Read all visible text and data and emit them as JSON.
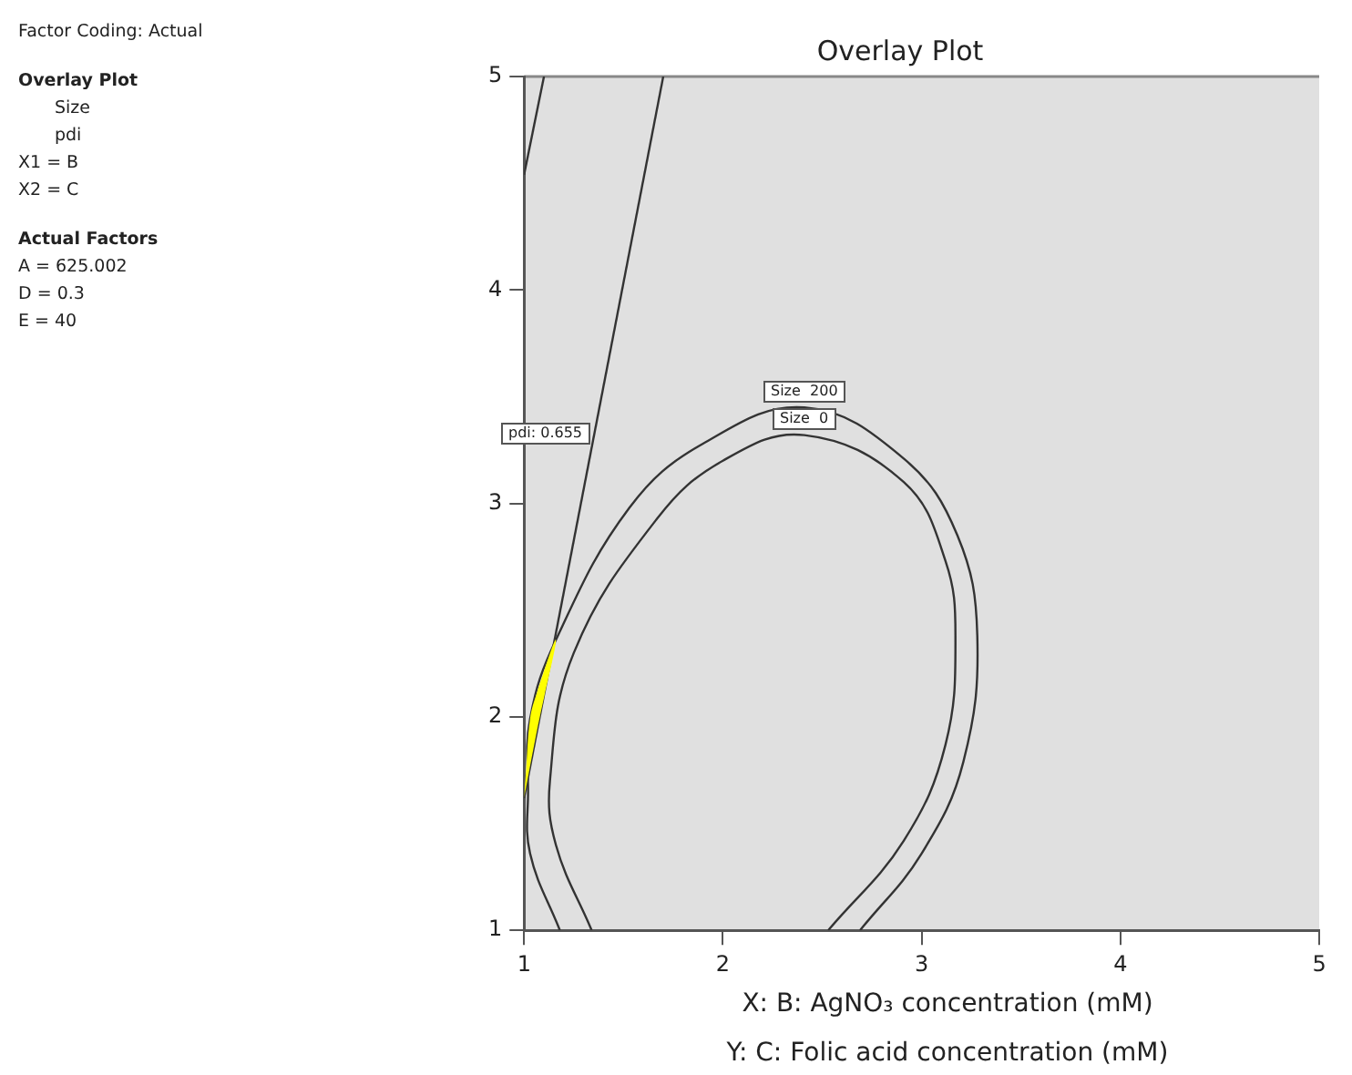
{
  "chart_data": {
    "type": "line",
    "title": "Overlay Plot",
    "xlabel": "X: B: AgNO₃ concentration (mM)",
    "xlim": [
      1,
      5
    ],
    "xticks": [
      1,
      2,
      3,
      4,
      5
    ],
    "ylim": [
      1,
      5
    ],
    "yticks": [
      1,
      2,
      3,
      4,
      5
    ],
    "grid": false,
    "legend": false,
    "marker": "none",
    "line_style": "solid",
    "series": [
      {
        "type": "area",
        "color": "#ffff00",
        "x": [
          1.0,
          1.07,
          1.16,
          1.06,
          1.03,
          1.01,
          1.0
        ],
        "values": [
          1.62,
          1.96,
          2.36,
          2.1,
          1.99,
          1.75,
          1.62
        ]
      },
      {
        "color": "#333333",
        "x": [
          1.18,
          1.03,
          1.02,
          1.03,
          1.16,
          1.53,
          1.9,
          2.41,
          2.91,
          3.18,
          3.28,
          3.21,
          3.0,
          2.69
        ],
        "values": [
          1,
          1.36,
          1.65,
          1.99,
          2.36,
          2.98,
          3.28,
          3.45,
          3.21,
          2.85,
          2.38,
          1.79,
          1.36,
          1
        ]
      },
      {
        "color": "#333333",
        "x": [
          1.34,
          1.16,
          1.13,
          1.25,
          1.67,
          2.0,
          2.41,
          2.91,
          3.12,
          3.17,
          3.12,
          2.91,
          2.53
        ],
        "values": [
          1,
          1.4,
          1.7,
          2.3,
          2.93,
          3.2,
          3.32,
          3.1,
          2.73,
          2.38,
          1.87,
          1.42,
          1
        ]
      },
      {
        "color": "#333333",
        "x": [
          1.7,
          1.0
        ],
        "values": [
          5,
          1.62
        ]
      },
      {
        "color": "#333333",
        "x": [
          1.0,
          1.1
        ],
        "values": [
          4.54,
          5
        ]
      }
    ],
    "annotations": [
      "Y: C: Folic acid concentration (mM)",
      "Factor Coding: Actual",
      "Overlay Plot",
      "Size",
      "pdi",
      "X1 = B",
      "X2 = C",
      "Actual Factors",
      "A = 625.002",
      "D = 0.3",
      "E = 40",
      "pdi: 0.655",
      "Size  200",
      "Size  0"
    ]
  }
}
